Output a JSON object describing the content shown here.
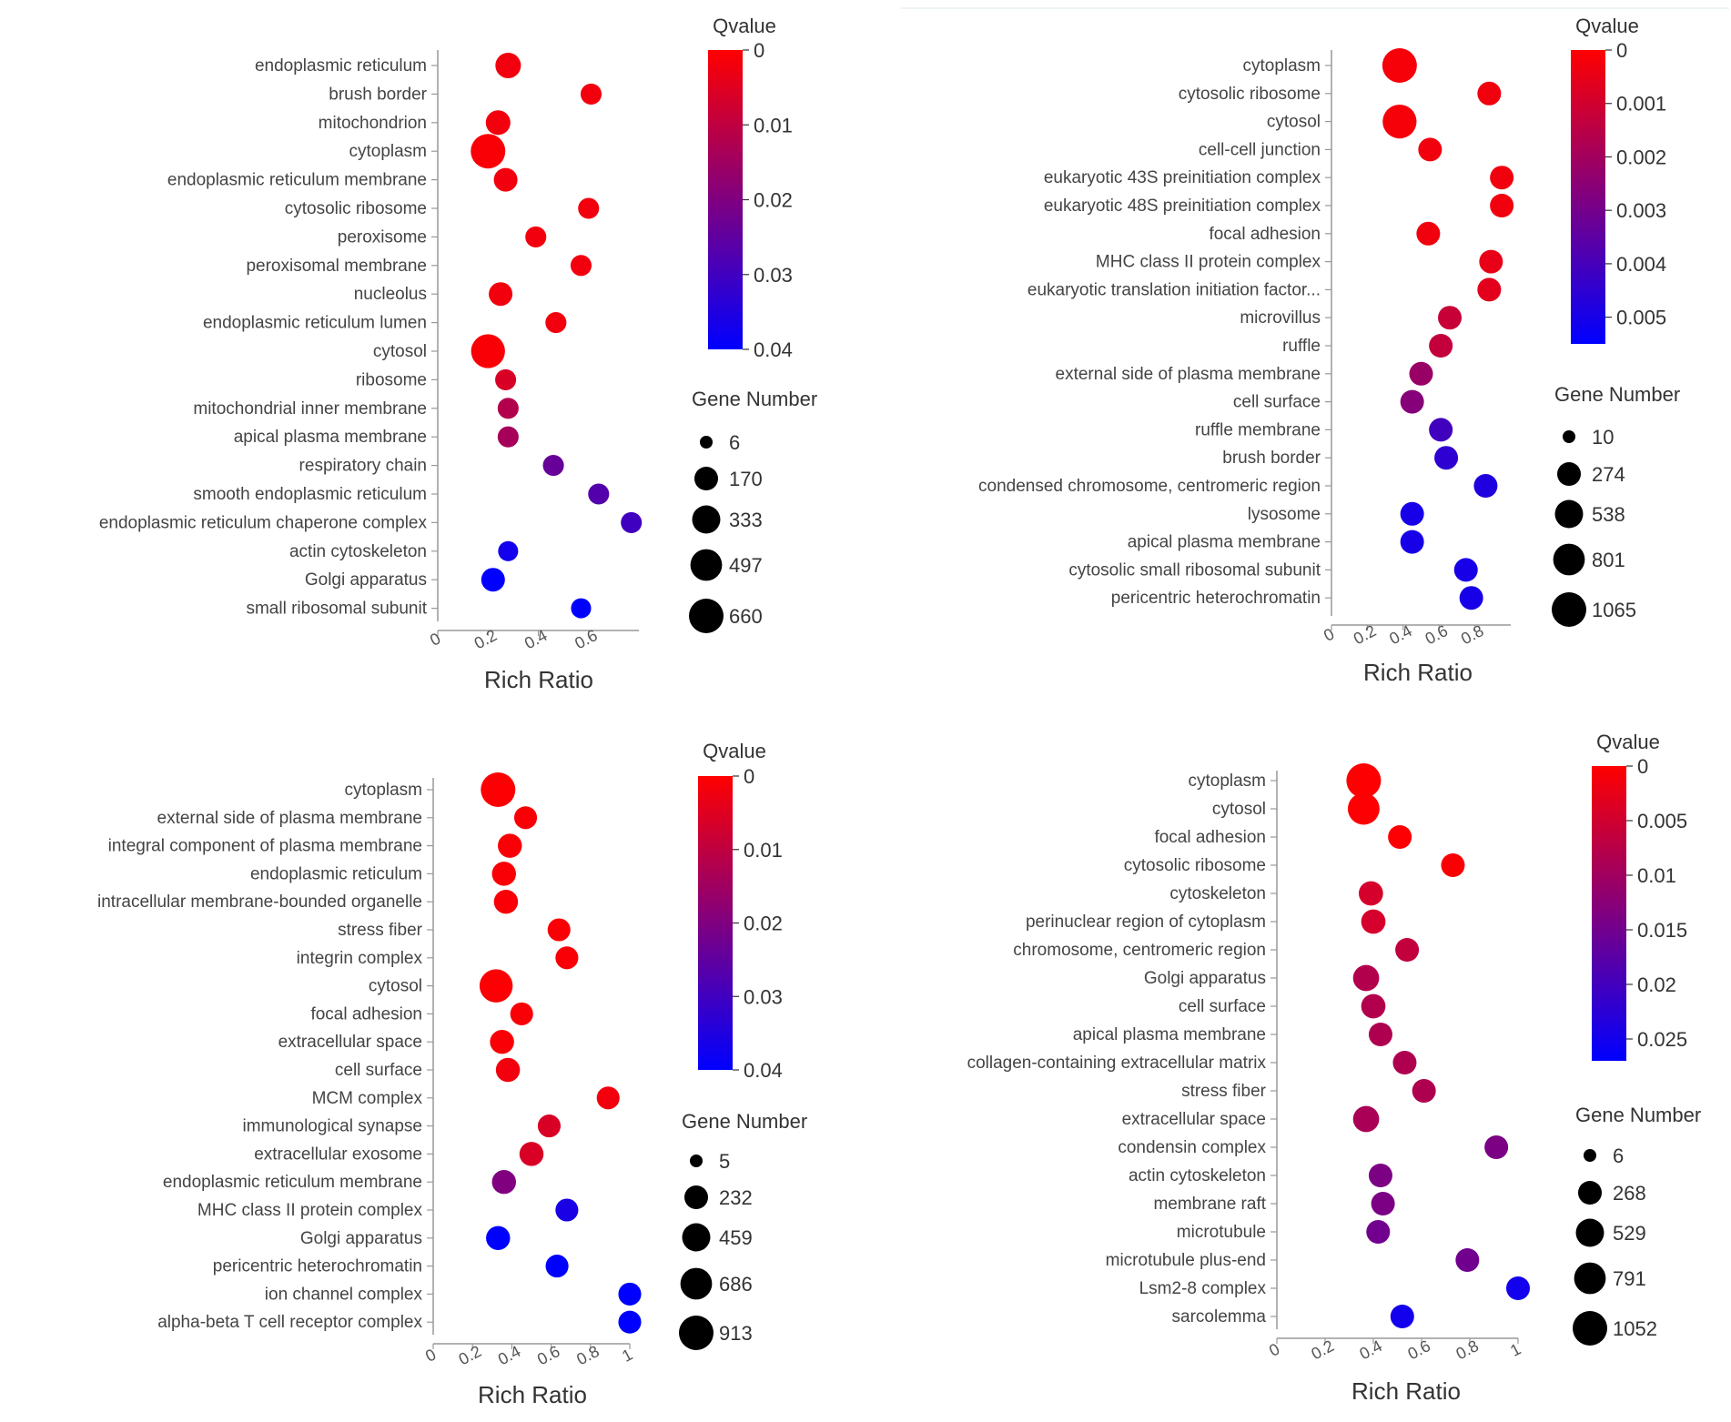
{
  "chart_data": [
    {
      "type": "scatter",
      "xlabel": "Rich Ratio",
      "xticks": [
        "0",
        "0.2",
        "0.4",
        "0.6"
      ],
      "xlim": [
        0,
        0.8
      ],
      "categories": [
        "endoplasmic reticulum",
        "brush border",
        "mitochondrion",
        "cytoplasm",
        "endoplasmic reticulum membrane",
        "cytosolic ribosome",
        "peroxisome",
        "peroxisomal membrane",
        "nucleolus",
        "endoplasmic reticulum lumen",
        "cytosol",
        "ribosome",
        "mitochondrial inner membrane",
        "apical plasma membrane",
        "respiratory chain",
        "smooth endoplasmic reticulum",
        "endoplasmic reticulum chaperone complex",
        "actin cytoskeleton",
        "Golgi apparatus",
        "small ribosomal subunit"
      ],
      "x": [
        0.28,
        0.61,
        0.24,
        0.2,
        0.27,
        0.6,
        0.39,
        0.57,
        0.25,
        0.47,
        0.2,
        0.27,
        0.28,
        0.28,
        0.46,
        0.64,
        0.77,
        0.28,
        0.22,
        0.57
      ],
      "qvalue": [
        0.002,
        0.002,
        0.002,
        0.001,
        0.002,
        0.002,
        0.002,
        0.002,
        0.002,
        0.002,
        0.001,
        0.006,
        0.012,
        0.014,
        0.024,
        0.027,
        0.03,
        0.037,
        0.04,
        0.04
      ],
      "gene_number": [
        230,
        100,
        200,
        660,
        170,
        100,
        100,
        100,
        170,
        100,
        620,
        100,
        100,
        100,
        100,
        100,
        100,
        80,
        170,
        80
      ],
      "colorbar": {
        "title": "Qvalue",
        "min": 0,
        "max": 0.04,
        "ticks": [
          "0",
          "0.01",
          "0.02",
          "0.03",
          "0.04"
        ]
      },
      "size_legend": {
        "title": "Gene Number",
        "values": [
          6,
          170,
          333,
          497,
          660
        ]
      }
    },
    {
      "type": "scatter",
      "xlabel": "Rich Ratio",
      "xticks": [
        "0",
        "0.2",
        "0.4",
        "0.6",
        "0.8"
      ],
      "xlim": [
        0,
        1.0
      ],
      "categories": [
        "cytoplasm",
        "cytosolic ribosome",
        "cytosol",
        "cell-cell junction",
        "eukaryotic 43S preinitiation complex",
        "eukaryotic 48S preinitiation complex",
        "focal adhesion",
        "MHC class II protein complex",
        "eukaryotic translation initiation factor...",
        "microvillus",
        "ruffle",
        "external side of plasma membrane",
        "cell surface",
        "ruffle membrane",
        "brush border",
        "condensed chromosome, centromeric region",
        "lysosome",
        "apical plasma membrane",
        "cytosolic small ribosomal subunit",
        "pericentric heterochromatin"
      ],
      "x": [
        0.38,
        0.88,
        0.38,
        0.55,
        0.95,
        0.95,
        0.54,
        0.89,
        0.88,
        0.66,
        0.61,
        0.5,
        0.45,
        0.61,
        0.64,
        0.86,
        0.45,
        0.45,
        0.75,
        0.78
      ],
      "qvalue": [
        0.0002,
        0.0003,
        0.0002,
        0.0003,
        0.0003,
        0.0003,
        0.0003,
        0.0005,
        0.0006,
        0.0012,
        0.0013,
        0.0022,
        0.0026,
        0.0041,
        0.0045,
        0.0048,
        0.005,
        0.005,
        0.005,
        0.005
      ],
      "gene_number": [
        1065,
        274,
        1000,
        274,
        274,
        274,
        274,
        274,
        274,
        274,
        274,
        274,
        274,
        274,
        274,
        274,
        274,
        274,
        274,
        274
      ],
      "colorbar": {
        "title": "Qvalue",
        "min": 0,
        "max": 0.0055,
        "ticks": [
          "0",
          "0.001",
          "0.002",
          "0.003",
          "0.004",
          "0.005"
        ]
      },
      "size_legend": {
        "title": "Gene Number",
        "values": [
          10,
          274,
          538,
          801,
          1065
        ]
      }
    },
    {
      "type": "scatter",
      "xlabel": "Rich Ratio",
      "xticks": [
        "0",
        "0.2",
        "0.4",
        "0.6",
        "0.8",
        "1"
      ],
      "xlim": [
        0,
        1.0
      ],
      "categories": [
        "cytoplasm",
        "external side of plasma membrane",
        "integral component of plasma membrane",
        "endoplasmic reticulum",
        "intracellular membrane-bounded organelle",
        "stress fiber",
        "integrin complex",
        "cytosol",
        "focal adhesion",
        "extracellular space",
        "cell surface",
        "MCM complex",
        "immunological synapse",
        "extracellular exosome",
        "endoplasmic reticulum membrane",
        "MHC class II protein complex",
        "Golgi apparatus",
        "pericentric heterochromatin",
        "ion channel complex",
        "alpha-beta T cell receptor complex"
      ],
      "x": [
        0.33,
        0.47,
        0.39,
        0.36,
        0.37,
        0.64,
        0.68,
        0.32,
        0.45,
        0.35,
        0.38,
        0.89,
        0.59,
        0.5,
        0.36,
        0.68,
        0.33,
        0.63,
        1.0,
        1.0
      ],
      "qvalue": [
        0.0005,
        0.001,
        0.001,
        0.001,
        0.001,
        0.001,
        0.001,
        0.0005,
        0.001,
        0.001,
        0.002,
        0.002,
        0.006,
        0.006,
        0.02,
        0.036,
        0.04,
        0.04,
        0.04,
        0.04
      ],
      "gene_number": [
        913,
        200,
        250,
        250,
        250,
        200,
        200,
        800,
        200,
        250,
        250,
        200,
        200,
        250,
        250,
        200,
        250,
        200,
        200,
        200
      ],
      "colorbar": {
        "title": "Qvalue",
        "min": 0,
        "max": 0.04,
        "ticks": [
          "0",
          "0.01",
          "0.02",
          "0.03",
          "0.04"
        ]
      },
      "size_legend": {
        "title": "Gene Number",
        "values": [
          5,
          232,
          459,
          686,
          913
        ]
      }
    },
    {
      "type": "scatter",
      "xlabel": "Rich Ratio",
      "xticks": [
        "0",
        "0.2",
        "0.4",
        "0.6",
        "0.8",
        "1"
      ],
      "xlim": [
        0,
        1.0
      ],
      "categories": [
        "cytoplasm",
        "cytosol",
        "focal adhesion",
        "cytosolic ribosome",
        "cytoskeleton",
        "perinuclear region of cytoplasm",
        "chromosome, centromeric region",
        "Golgi apparatus",
        "cell surface",
        "apical plasma membrane",
        "collagen-containing extracellular matrix",
        "stress fiber",
        "extracellular space",
        "condensin complex",
        "actin cytoskeleton",
        "membrane raft",
        "microtubule",
        "microtubule plus-end",
        "Lsm2-8 complex",
        "sarcolemma"
      ],
      "x": [
        0.36,
        0.36,
        0.51,
        0.73,
        0.39,
        0.4,
        0.54,
        0.37,
        0.4,
        0.43,
        0.53,
        0.61,
        0.37,
        0.91,
        0.43,
        0.44,
        0.42,
        0.79,
        1.0,
        0.52
      ],
      "qvalue": [
        0.0002,
        0.0003,
        0.0003,
        0.0005,
        0.0045,
        0.0045,
        0.0065,
        0.008,
        0.008,
        0.0085,
        0.0085,
        0.0085,
        0.009,
        0.014,
        0.014,
        0.014,
        0.015,
        0.015,
        0.025,
        0.025
      ],
      "gene_number": [
        1052,
        800,
        268,
        268,
        300,
        300,
        268,
        400,
        300,
        268,
        268,
        268,
        400,
        268,
        268,
        268,
        268,
        268,
        268,
        268
      ],
      "colorbar": {
        "title": "Qvalue",
        "min": 0,
        "max": 0.027,
        "ticks": [
          "0",
          "0.005",
          "0.01",
          "0.015",
          "0.02",
          "0.025"
        ]
      },
      "size_legend": {
        "title": "Gene Number",
        "values": [
          6,
          268,
          529,
          791,
          1052
        ]
      }
    }
  ]
}
